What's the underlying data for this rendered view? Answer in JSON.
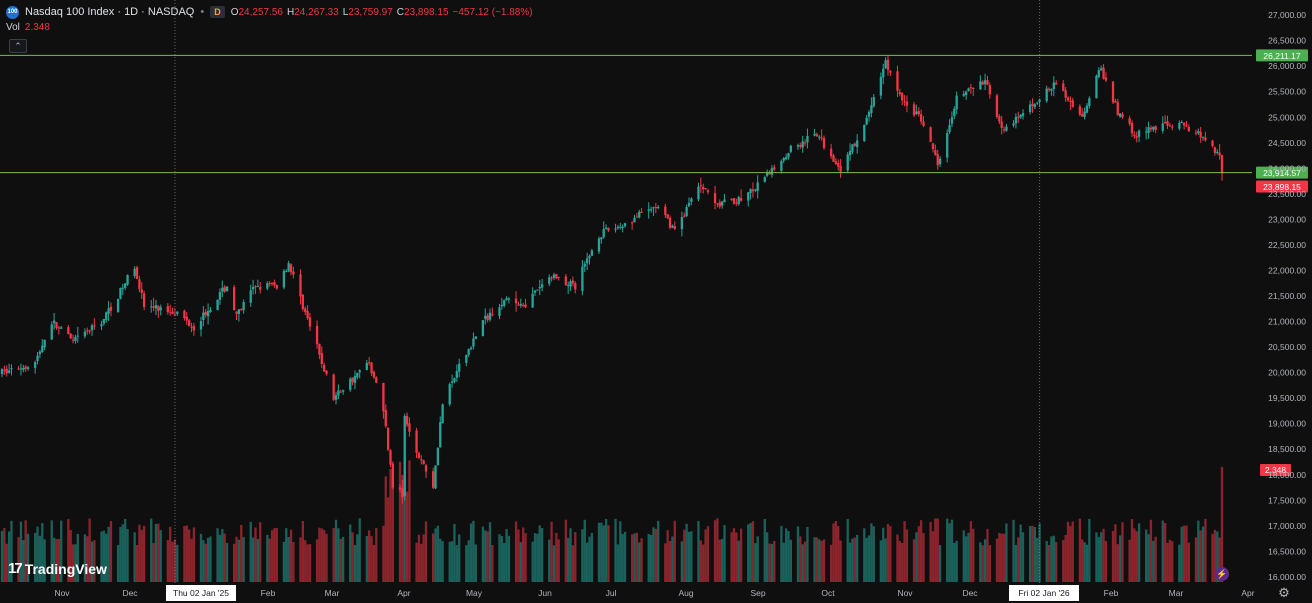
{
  "legend": {
    "symbol_icon": "nasdaq-100-badge-icon",
    "symbol_icon_text": "100",
    "title": "Nasdaq 100 Index · 1D · NASDAQ",
    "badge": "D",
    "open_label": "O",
    "open": "24,257.56",
    "high_label": "H",
    "high": "24,267.33",
    "low_label": "L",
    "low": "23,759.97",
    "close_label": "C",
    "close": "23,898.15",
    "change": "−457.12 (−1.88%)"
  },
  "volume_legend": {
    "label": "Vol",
    "value": "2.348"
  },
  "collapse_icon": "chevron-up-icon",
  "logo": {
    "mark": "17",
    "text": "TradingView"
  },
  "bolt_icon": "lightning-icon",
  "settings_icon": "gear-icon",
  "price_axis": {
    "ticks": [
      "27,000.00",
      "26,500.00",
      "26,000.00",
      "25,500.00",
      "25,000.00",
      "24,500.00",
      "24,000.00",
      "23,500.00",
      "23,000.00",
      "22,500.00",
      "22,000.00",
      "21,500.00",
      "21,000.00",
      "20,500.00",
      "20,000.00",
      "19,500.00",
      "19,000.00",
      "18,500.00",
      "18,000.00",
      "17,500.00",
      "17,000.00",
      "16,500.00",
      "16,000.00"
    ],
    "tick_values": [
      27000,
      26500,
      26000,
      25500,
      25000,
      24500,
      24000,
      23500,
      23000,
      22500,
      22000,
      21500,
      21000,
      20500,
      20000,
      19500,
      19000,
      18500,
      18000,
      17500,
      17000,
      16500,
      16000
    ]
  },
  "time_axis": {
    "labels": [
      "Nov",
      "Dec",
      "Thu 02 Jan '25",
      "Feb",
      "Mar",
      "Apr",
      "May",
      "Jun",
      "Jul",
      "Aug",
      "Sep",
      "Oct",
      "Nov",
      "Dec",
      "Fri 02 Jan '26",
      "Feb",
      "Mar",
      "Apr"
    ],
    "highlighted": [
      "Thu 02 Jan '25",
      "Fri 02 Jan '26"
    ]
  },
  "horizontal_lines": [
    {
      "price": 26211.17,
      "label": "26,211.17",
      "color": "#4caf50"
    },
    {
      "price": 23914.57,
      "label": "23,914.57",
      "color": "#4caf50"
    }
  ],
  "last_price_tag": {
    "price": 23898.15,
    "label": "23,898.15",
    "color": "#f23645"
  },
  "volume_tag": {
    "label": "2.348",
    "color": "#f23645"
  },
  "colors": {
    "up": "#26a69a",
    "down": "#f23645",
    "background": "#0f0f0f",
    "grid": "#1e1f24",
    "axis_text": "#b2b5be",
    "level_line": "#7fbf3f"
  },
  "chart_data": {
    "type": "candlestick",
    "x_range": [
      "2024-10-21",
      "2026-03-20"
    ],
    "ylim": [
      15900,
      27100
    ],
    "volume_ylim": [
      0,
      2.55
    ],
    "grid": false,
    "anchors": [
      [
        "2024-10-21",
        20000
      ],
      [
        "2024-11-04",
        20200
      ],
      [
        "2024-11-11",
        21000
      ],
      [
        "2024-11-20",
        20600
      ],
      [
        "2024-12-02",
        21000
      ],
      [
        "2024-12-09",
        21500
      ],
      [
        "2024-12-16",
        22100
      ],
      [
        "2024-12-20",
        21300
      ],
      [
        "2025-01-02",
        21200
      ],
      [
        "2025-01-10",
        20900
      ],
      [
        "2025-01-24",
        21700
      ],
      [
        "2025-01-28",
        21100
      ],
      [
        "2025-02-05",
        21700
      ],
      [
        "2025-02-14",
        21700
      ],
      [
        "2025-02-19",
        22150
      ],
      [
        "2025-02-28",
        20900
      ],
      [
        "2025-03-10",
        19500
      ],
      [
        "2025-03-14",
        19700
      ],
      [
        "2025-03-25",
        20200
      ],
      [
        "2025-03-31",
        19300
      ],
      [
        "2025-04-04",
        17800
      ],
      [
        "2025-04-08",
        17600
      ],
      [
        "2025-04-09",
        19200
      ],
      [
        "2025-04-14",
        18500
      ],
      [
        "2025-04-21",
        17800
      ],
      [
        "2025-04-25",
        19400
      ],
      [
        "2025-05-02",
        20100
      ],
      [
        "2025-05-12",
        21000
      ],
      [
        "2025-05-20",
        21400
      ],
      [
        "2025-05-30",
        21350
      ],
      [
        "2025-06-10",
        21900
      ],
      [
        "2025-06-20",
        21700
      ],
      [
        "2025-06-30",
        22700
      ],
      [
        "2025-07-10",
        22900
      ],
      [
        "2025-07-24",
        23250
      ],
      [
        "2025-08-01",
        22800
      ],
      [
        "2025-08-12",
        23700
      ],
      [
        "2025-08-20",
        23300
      ],
      [
        "2025-08-29",
        23400
      ],
      [
        "2025-09-05",
        23650
      ],
      [
        "2025-09-19",
        24400
      ],
      [
        "2025-09-30",
        24650
      ],
      [
        "2025-10-10",
        24000
      ],
      [
        "2025-10-20",
        24800
      ],
      [
        "2025-10-29",
        26100
      ],
      [
        "2025-11-04",
        25400
      ],
      [
        "2025-11-14",
        24900
      ],
      [
        "2025-11-20",
        24100
      ],
      [
        "2025-11-28",
        25400
      ],
      [
        "2025-12-10",
        25700
      ],
      [
        "2025-12-18",
        24700
      ],
      [
        "2025-12-31",
        25300
      ],
      [
        "2026-01-09",
        25650
      ],
      [
        "2026-01-20",
        25000
      ],
      [
        "2026-01-27",
        26000
      ],
      [
        "2026-02-04",
        25100
      ],
      [
        "2026-02-12",
        24650
      ],
      [
        "2026-02-24",
        24900
      ],
      [
        "2026-03-06",
        24800
      ],
      [
        "2026-03-13",
        24600
      ],
      [
        "2026-03-19",
        24257.56
      ],
      [
        "2026-03-20",
        23898.15
      ]
    ],
    "last_candle": {
      "date": "2026-03-20",
      "open": 24257.56,
      "high": 24267.33,
      "low": 23759.97,
      "close": 23898.15,
      "volume": 2.348
    }
  }
}
